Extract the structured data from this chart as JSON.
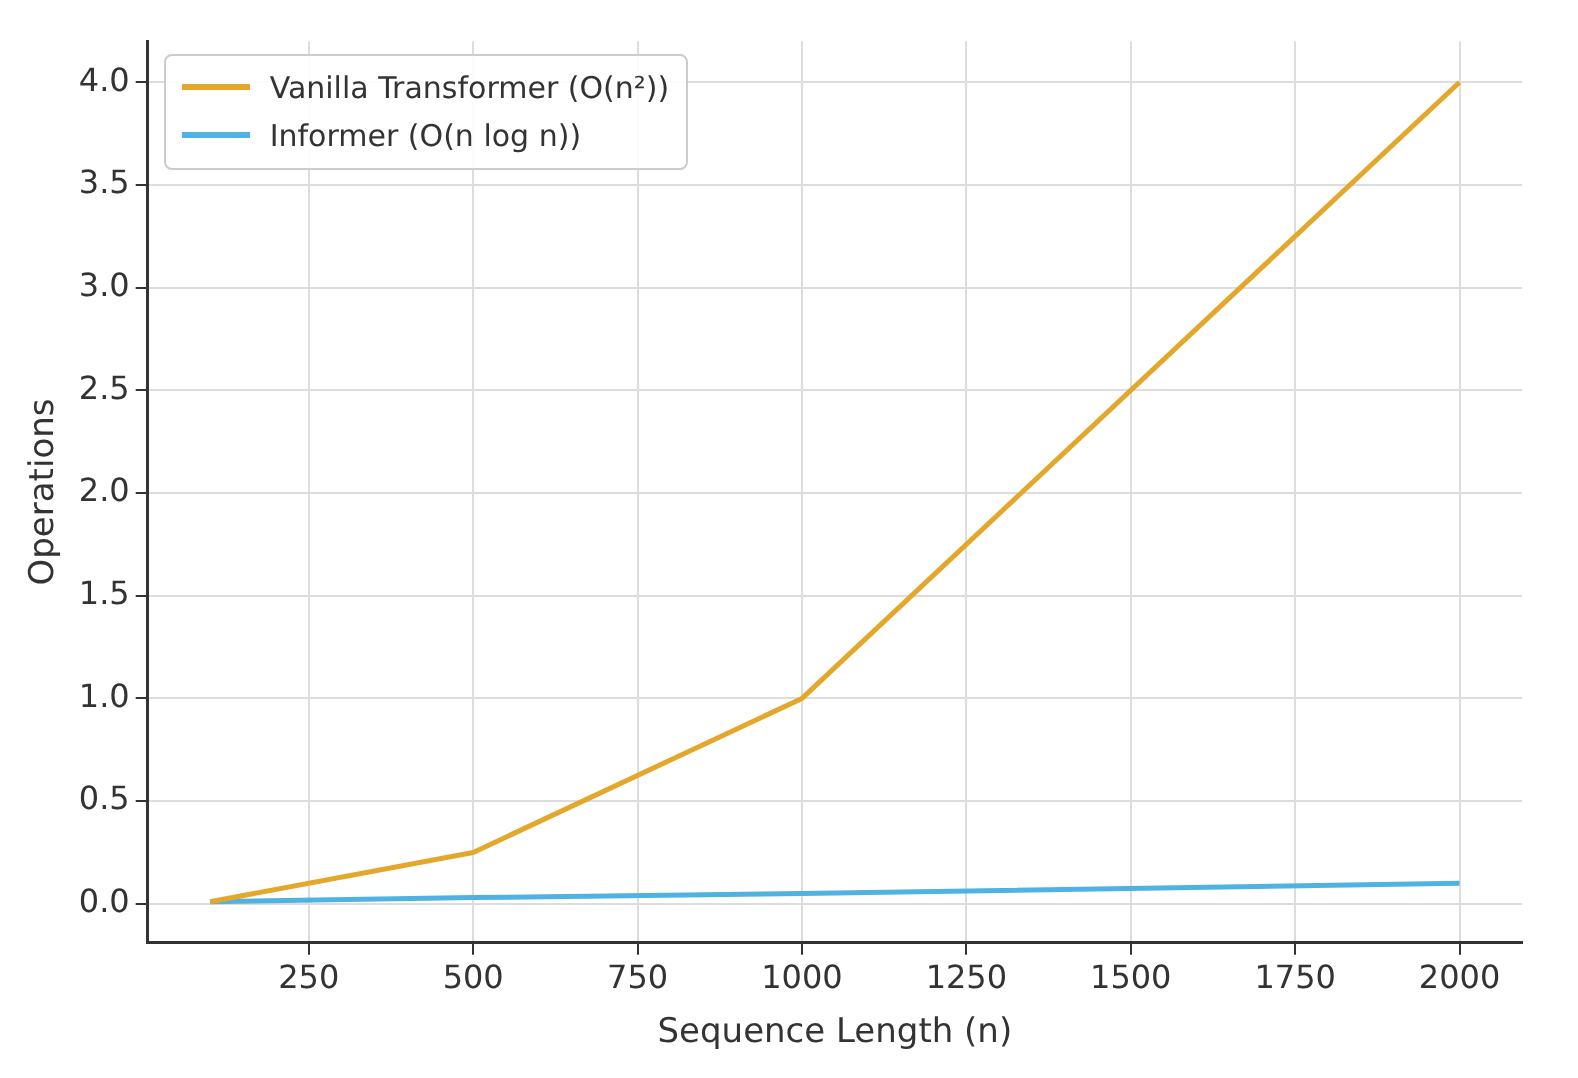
{
  "chart_data": {
    "type": "line",
    "xlabel": "Sequence Length (n)",
    "ylabel": "Operations",
    "x": [
      100,
      500,
      1000,
      2000
    ],
    "series": [
      {
        "name": "Vanilla Transformer (O(n²))",
        "color": "#e3a82b",
        "values": [
          0.01,
          0.25,
          1.0,
          4.0
        ]
      },
      {
        "name": "Informer (O(n log n))",
        "color": "#4fb2e3",
        "values": [
          0.01,
          0.03,
          0.05,
          0.1
        ]
      }
    ],
    "xlim": [
      5,
      2095
    ],
    "xticks": [
      250,
      500,
      750,
      1000,
      1250,
      1500,
      1750,
      2000
    ],
    "ylim": [
      -0.19,
      4.2
    ],
    "yticks": [
      {
        "value": 0,
        "label": "0.0"
      },
      {
        "value": 0.5,
        "label": "0.5"
      },
      {
        "value": 1,
        "label": "1.0"
      },
      {
        "value": 1.5,
        "label": "1.5"
      },
      {
        "value": 2,
        "label": "2.0"
      },
      {
        "value": 2.5,
        "label": "2.5"
      },
      {
        "value": 3,
        "label": "3.0"
      },
      {
        "value": 3.5,
        "label": "3.5"
      },
      {
        "value": 4,
        "label": "4.0"
      }
    ],
    "grid": true,
    "legend": "top left",
    "marker": "none",
    "line_style": "solid"
  }
}
